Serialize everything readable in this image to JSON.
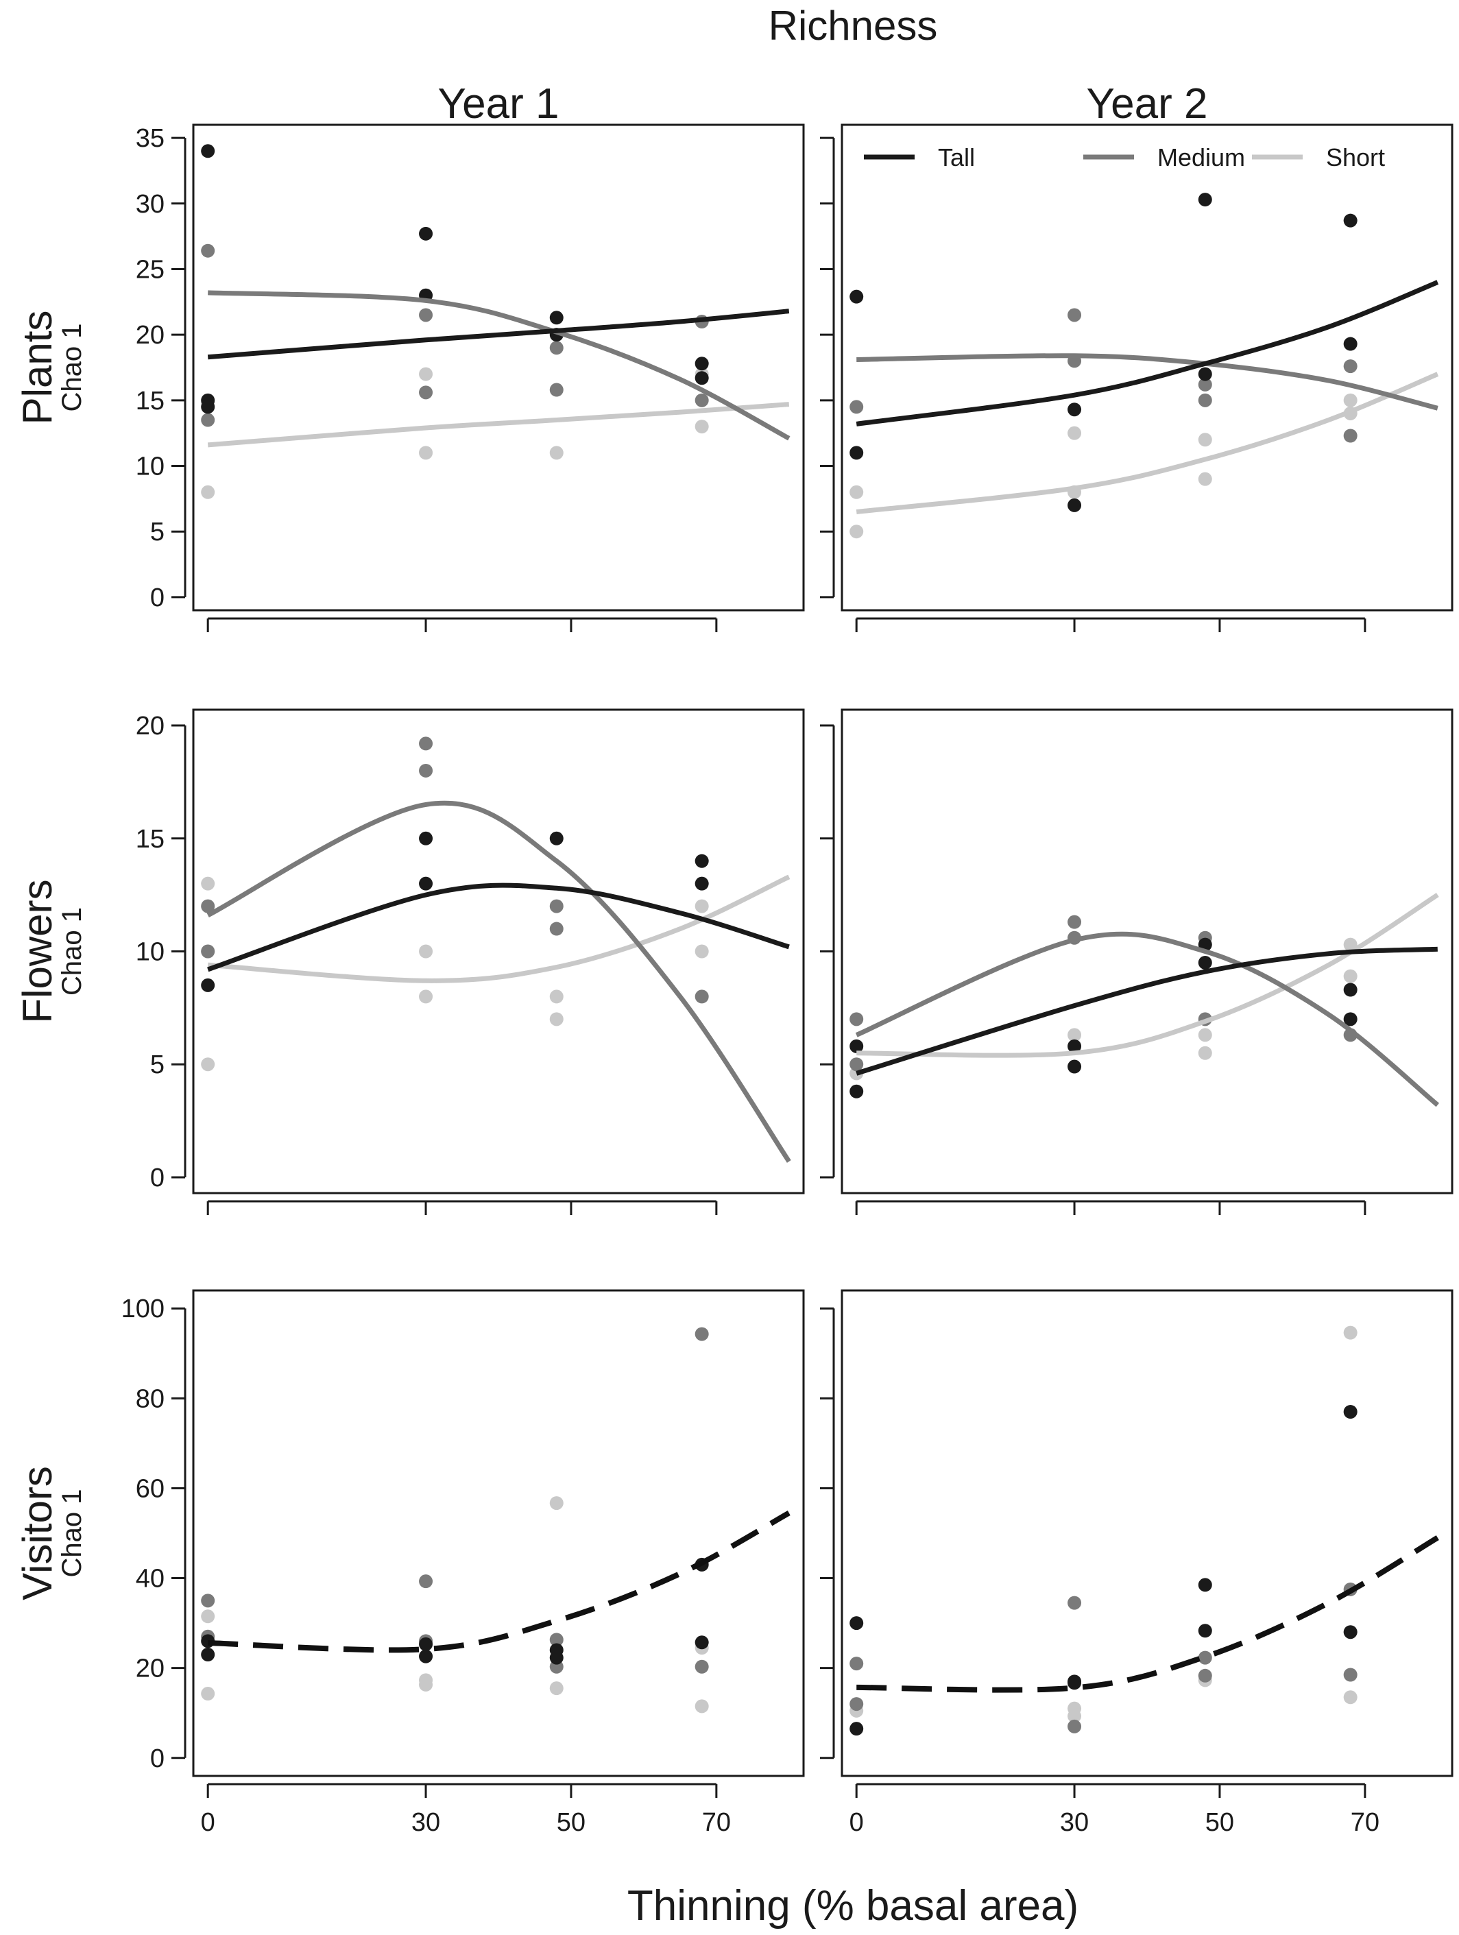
{
  "figure": {
    "title": "Richness",
    "xlabel": "Thinning (% basal area)",
    "columns": [
      "Year 1",
      "Year 2"
    ]
  },
  "colors": {
    "Tall": "#1a1a1a",
    "Medium": "#7a7a7a",
    "Short": "#c8c8c8"
  },
  "legend": {
    "placement": "top (inside Year 2 Plants panel)",
    "entries": [
      {
        "name": "Tall",
        "color": "#1a1a1a"
      },
      {
        "name": "Medium",
        "color": "#7a7a7a"
      },
      {
        "name": "Short",
        "color": "#c8c8c8"
      }
    ]
  },
  "chart_data": [
    {
      "type": "scatter",
      "row": "Plants",
      "column": "Year 1",
      "ylabel": "Chao 1",
      "xticks": [
        0,
        30,
        50,
        70
      ],
      "xlim": [
        -2,
        82
      ],
      "yticks": [
        0,
        5,
        10,
        15,
        20,
        25,
        30,
        35
      ],
      "ylim": [
        -1,
        36
      ],
      "series": [
        {
          "name": "Tall",
          "points": [
            [
              0,
              34
            ],
            [
              0,
              15
            ],
            [
              0,
              14.5
            ],
            [
              30,
              27.7
            ],
            [
              30,
              23
            ],
            [
              48,
              21.3
            ],
            [
              48,
              20
            ],
            [
              68,
              17.8
            ],
            [
              68,
              16.7
            ]
          ],
          "fit": "line",
          "fit_y": [
            18.3,
            19.6,
            20.3,
            21.0,
            21.8
          ]
        },
        {
          "name": "Medium",
          "points": [
            [
              0,
              26.4
            ],
            [
              0,
              13.5
            ],
            [
              30,
              21.5
            ],
            [
              30,
              15.6
            ],
            [
              48,
              19
            ],
            [
              48,
              15.8
            ],
            [
              68,
              21
            ],
            [
              68,
              15
            ]
          ],
          "fit": "curve",
          "fit_y": [
            23.2,
            22.6,
            20.2,
            16.6,
            12.1
          ]
        },
        {
          "name": "Short",
          "points": [
            [
              0,
              14.8
            ],
            [
              0,
              8
            ],
            [
              30,
              17
            ],
            [
              30,
              11
            ],
            [
              48,
              11
            ],
            [
              68,
              17
            ],
            [
              68,
              13
            ]
          ],
          "fit": "line",
          "fit_y": [
            11.6,
            12.9,
            13.5,
            14.1,
            14.7
          ]
        }
      ]
    },
    {
      "type": "scatter",
      "row": "Plants",
      "column": "Year 2",
      "ylabel": "",
      "xticks": [
        0,
        30,
        50,
        70
      ],
      "xlim": [
        -2,
        82
      ],
      "yticks": [
        0,
        5,
        10,
        15,
        20,
        25,
        30,
        35
      ],
      "ylim": [
        -1,
        36
      ],
      "series": [
        {
          "name": "Tall",
          "points": [
            [
              0,
              22.9
            ],
            [
              0,
              11
            ],
            [
              30,
              14.3
            ],
            [
              30,
              7
            ],
            [
              48,
              30.3
            ],
            [
              48,
              17
            ],
            [
              68,
              28.7
            ],
            [
              68,
              19.3
            ]
          ],
          "fit": "curve",
          "fit_y": [
            13.2,
            15.4,
            17.8,
            20.6,
            24.0
          ]
        },
        {
          "name": "Medium",
          "points": [
            [
              0,
              14.5
            ],
            [
              30,
              21.5
            ],
            [
              30,
              18
            ],
            [
              48,
              16.2
            ],
            [
              48,
              15
            ],
            [
              68,
              17.6
            ],
            [
              68,
              12.3
            ]
          ],
          "fit": "curve",
          "fit_y": [
            18.1,
            18.4,
            17.8,
            16.5,
            14.4
          ]
        },
        {
          "name": "Short",
          "points": [
            [
              0,
              8
            ],
            [
              0,
              5
            ],
            [
              30,
              12.5
            ],
            [
              30,
              8
            ],
            [
              48,
              12
            ],
            [
              48,
              9
            ],
            [
              68,
              15
            ],
            [
              68,
              14
            ]
          ],
          "fit": "curve",
          "fit_y": [
            6.5,
            8.3,
            10.5,
            13.5,
            17.0
          ]
        }
      ]
    },
    {
      "type": "scatter",
      "row": "Flowers",
      "column": "Year 1",
      "ylabel": "Chao 1",
      "xticks": [
        0,
        30,
        50,
        70
      ],
      "xlim": [
        -2,
        82
      ],
      "yticks": [
        0,
        5,
        10,
        15,
        20
      ],
      "ylim": [
        -0.7,
        20.7
      ],
      "series": [
        {
          "name": "Tall",
          "points": [
            [
              0,
              8.5
            ],
            [
              30,
              15
            ],
            [
              30,
              13
            ],
            [
              48,
              15
            ],
            [
              68,
              14
            ],
            [
              68,
              13
            ]
          ],
          "fit": "curve",
          "fit_y": [
            9.2,
            12.5,
            12.8,
            11.7,
            10.2
          ]
        },
        {
          "name": "Medium",
          "points": [
            [
              0,
              12
            ],
            [
              0,
              10
            ],
            [
              30,
              19.2
            ],
            [
              30,
              18
            ],
            [
              48,
              12
            ],
            [
              48,
              11
            ],
            [
              68,
              8
            ]
          ],
          "fit": "curve",
          "fit_y": [
            11.6,
            16.5,
            14.0,
            8.0,
            0.7
          ]
        },
        {
          "name": "Short",
          "points": [
            [
              0,
              13
            ],
            [
              0,
              10
            ],
            [
              0,
              5
            ],
            [
              30,
              10
            ],
            [
              30,
              8
            ],
            [
              48,
              8
            ],
            [
              48,
              7
            ],
            [
              68,
              12
            ],
            [
              68,
              10
            ]
          ],
          "fit": "curve",
          "fit_y": [
            9.4,
            8.7,
            9.3,
            11.0,
            13.3
          ]
        }
      ]
    },
    {
      "type": "scatter",
      "row": "Flowers",
      "column": "Year 2",
      "ylabel": "",
      "xticks": [
        0,
        30,
        50,
        70
      ],
      "xlim": [
        -2,
        82
      ],
      "yticks": [
        0,
        5,
        10,
        15,
        20
      ],
      "ylim": [
        -0.7,
        20.7
      ],
      "series": [
        {
          "name": "Tall",
          "points": [
            [
              0,
              5.8
            ],
            [
              0,
              3.8
            ],
            [
              30,
              5.8
            ],
            [
              30,
              4.9
            ],
            [
              48,
              10.3
            ],
            [
              48,
              9.5
            ],
            [
              68,
              8.3
            ],
            [
              68,
              7
            ]
          ],
          "fit": "curve",
          "fit_y": [
            4.6,
            7.6,
            9.1,
            9.9,
            10.1
          ]
        },
        {
          "name": "Medium",
          "points": [
            [
              0,
              7
            ],
            [
              0,
              5
            ],
            [
              30,
              11.3
            ],
            [
              30,
              10.6
            ],
            [
              48,
              10.6
            ],
            [
              48,
              7
            ],
            [
              68,
              6.3
            ]
          ],
          "fit": "curve",
          "fit_y": [
            6.3,
            10.5,
            10.0,
            7.2,
            3.2
          ]
        },
        {
          "name": "Short",
          "points": [
            [
              0,
              4.6
            ],
            [
              30,
              6.3
            ],
            [
              48,
              6.3
            ],
            [
              48,
              5.5
            ],
            [
              68,
              10.3
            ],
            [
              68,
              8.9
            ]
          ],
          "fit": "curve",
          "fit_y": [
            5.5,
            5.5,
            6.9,
            9.4,
            12.5
          ]
        }
      ]
    },
    {
      "type": "scatter",
      "row": "Visitors",
      "column": "Year 1",
      "ylabel": "Chao 1",
      "xticks": [
        0,
        30,
        50,
        70
      ],
      "xlim": [
        -2,
        82
      ],
      "yticks": [
        0,
        20,
        40,
        60,
        80,
        100
      ],
      "ylim": [
        -4,
        104
      ],
      "series": [
        {
          "name": "Tall",
          "points": [
            [
              0,
              26
            ],
            [
              0,
              23
            ],
            [
              30,
              22.6
            ],
            [
              30,
              25.3
            ],
            [
              48,
              24
            ],
            [
              48,
              22.3
            ],
            [
              68,
              43
            ],
            [
              68,
              25.7
            ]
          ],
          "fit": "dashed-all",
          "fit_y": [
            25.6,
            24.2,
            30.5,
            41.0,
            54.5
          ]
        },
        {
          "name": "Medium",
          "points": [
            [
              0,
              35
            ],
            [
              0,
              27
            ],
            [
              30,
              39.3
            ],
            [
              30,
              26
            ],
            [
              48,
              26.3
            ],
            [
              48,
              20.3
            ],
            [
              68,
              94.3
            ],
            [
              68,
              20.3
            ]
          ],
          "fit": "none",
          "fit_y": []
        },
        {
          "name": "Short",
          "points": [
            [
              0,
              31.5
            ],
            [
              0,
              14.3
            ],
            [
              30,
              17.3
            ],
            [
              30,
              16.3
            ],
            [
              48,
              56.7
            ],
            [
              48,
              15.5
            ],
            [
              68,
              24.5
            ],
            [
              68,
              11.5
            ]
          ],
          "fit": "none",
          "fit_y": []
        }
      ]
    },
    {
      "type": "scatter",
      "row": "Visitors",
      "column": "Year 2",
      "ylabel": "",
      "xticks": [
        0,
        30,
        50,
        70
      ],
      "xlim": [
        -2,
        82
      ],
      "yticks": [
        0,
        20,
        40,
        60,
        80,
        100
      ],
      "ylim": [
        -4,
        104
      ],
      "series": [
        {
          "name": "Tall",
          "points": [
            [
              0,
              30
            ],
            [
              0,
              6.5
            ],
            [
              30,
              17
            ],
            [
              30,
              16.7
            ],
            [
              48,
              38.5
            ],
            [
              48,
              28.3
            ],
            [
              68,
              77
            ],
            [
              68,
              28
            ]
          ],
          "fit": "dashed-all",
          "fit_y": [
            15.7,
            15.6,
            22.5,
            34.5,
            49.0
          ]
        },
        {
          "name": "Medium",
          "points": [
            [
              0,
              21
            ],
            [
              0,
              12
            ],
            [
              30,
              34.5
            ],
            [
              30,
              7
            ],
            [
              48,
              22.3
            ],
            [
              48,
              18.3
            ],
            [
              68,
              37.5
            ],
            [
              68,
              18.5
            ]
          ],
          "fit": "none",
          "fit_y": []
        },
        {
          "name": "Short",
          "points": [
            [
              0,
              10.5
            ],
            [
              30,
              11
            ],
            [
              30,
              9.3
            ],
            [
              48,
              17.3
            ],
            [
              68,
              94.6
            ],
            [
              68,
              13.5
            ]
          ],
          "fit": "none",
          "fit_y": []
        }
      ]
    }
  ],
  "fit_x": [
    0,
    30,
    48,
    65,
    80
  ]
}
